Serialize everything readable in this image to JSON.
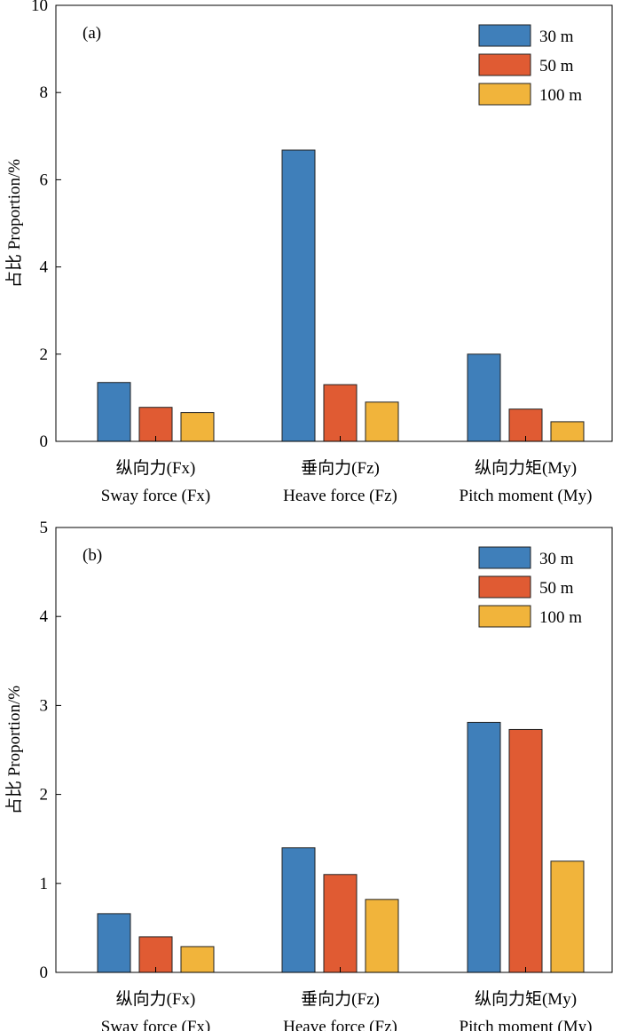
{
  "colors": {
    "30 m": "#3f7fba",
    "50 m": "#e05b33",
    "100 m": "#f1b43b",
    "frame": "#000000"
  },
  "chart_data": [
    {
      "type": "bar",
      "panel_label": "(a)",
      "ylabel": "占比 Proportion/%",
      "ylim": [
        0,
        10
      ],
      "yticks": [
        0,
        2,
        4,
        6,
        8,
        10
      ],
      "categories": [
        [
          "纵向力(Fx)",
          "Sway force (Fx)"
        ],
        [
          "垂向力(Fz)",
          "Heave force (Fz)"
        ],
        [
          "纵向力矩(My)",
          "Pitch moment (My)"
        ]
      ],
      "series": [
        {
          "name": "30 m",
          "values": [
            1.35,
            6.68,
            2.0
          ]
        },
        {
          "name": "50 m",
          "values": [
            0.78,
            1.3,
            0.74
          ]
        },
        {
          "name": "100 m",
          "values": [
            0.66,
            0.9,
            0.45
          ]
        }
      ],
      "legend_position": "top-right",
      "grid": false
    },
    {
      "type": "bar",
      "panel_label": "(b)",
      "ylabel": "占比 Proportion/%",
      "ylim": [
        0,
        5
      ],
      "yticks": [
        0,
        1,
        2,
        3,
        4,
        5
      ],
      "categories": [
        [
          "纵向力(Fx)",
          "Sway force (Fx)"
        ],
        [
          "垂向力(Fz)",
          "Heave force (Fz)"
        ],
        [
          "纵向力矩(My)",
          "Pitch moment (My)"
        ]
      ],
      "series": [
        {
          "name": "30 m",
          "values": [
            0.66,
            1.4,
            2.81
          ]
        },
        {
          "name": "50 m",
          "values": [
            0.4,
            1.1,
            2.73
          ]
        },
        {
          "name": "100 m",
          "values": [
            0.29,
            0.82,
            1.25
          ]
        }
      ],
      "legend_position": "top-right",
      "grid": false
    }
  ]
}
